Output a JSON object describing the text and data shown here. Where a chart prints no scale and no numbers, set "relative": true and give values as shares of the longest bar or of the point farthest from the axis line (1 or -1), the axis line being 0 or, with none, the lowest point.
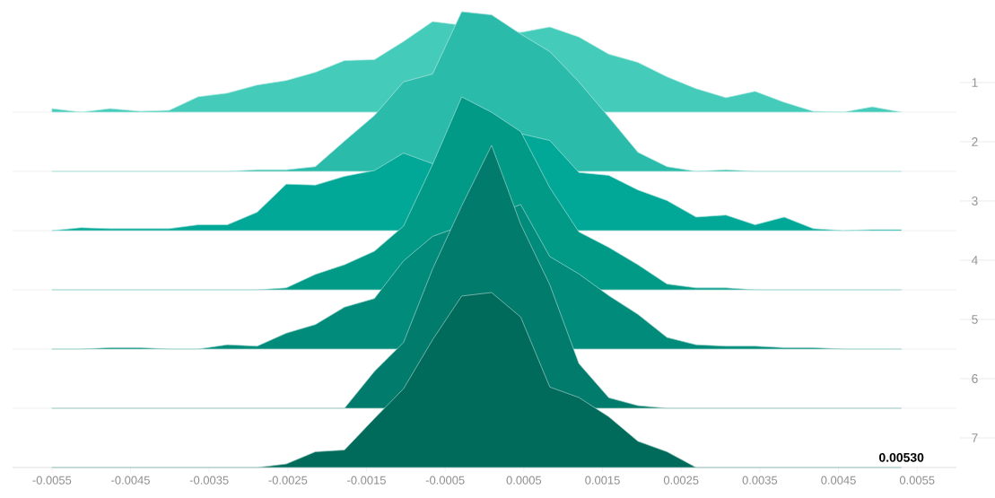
{
  "chart_data": [
    {
      "type": "area",
      "relative": true,
      "xlim": [
        -0.006,
        0.006
      ],
      "x": [
        -0.0055,
        -0.00513,
        -0.00476,
        -0.00438,
        -0.00401,
        -0.00364,
        -0.00327,
        -0.00289,
        -0.00252,
        -0.00215,
        -0.00178,
        -0.0014,
        -0.00103,
        -0.00066,
        -0.00029,
        9e-05,
        0.00046,
        0.00083,
        0.0012,
        0.00158,
        0.00195,
        0.00232,
        0.00269,
        0.00307,
        0.00344,
        0.00381,
        0.00418,
        0.00456,
        0.00493,
        0.0053
      ],
      "series": [
        {
          "name": "1",
          "color": "#45cbb9",
          "values": [
            0.04,
            0,
            0.04,
            0.01,
            0.02,
            0.17,
            0.21,
            0.3,
            0.35,
            0.44,
            0.57,
            0.58,
            0.78,
            1,
            null,
            null,
            0.88,
            0.94,
            0.83,
            0.64,
            0.55,
            0.39,
            0.26,
            0.16,
            0.23,
            0.11,
            0.01,
            0,
            0.06,
            0
          ]
        }
      ]
    },
    {
      "type": "area",
      "relative": true,
      "xlim": [
        -0.006,
        0.006
      ],
      "x": [
        -0.0055,
        -0.00513,
        -0.00476,
        -0.00438,
        -0.00401,
        -0.00364,
        -0.00327,
        -0.00289,
        -0.00252,
        -0.00215,
        -0.00178,
        -0.0014,
        -0.00103,
        -0.00066,
        -0.00029,
        9e-05,
        0.00046,
        0.00083,
        0.0012,
        0.00158,
        0.00195,
        0.00232,
        0.00269,
        0.00307,
        0.00344,
        0.00381,
        0.00418,
        0.00456,
        0.00493,
        0.0053
      ],
      "series": [
        {
          "name": "2",
          "color": "#2bbbaa",
          "values": [
            0,
            0,
            0,
            0,
            0,
            0,
            0,
            0.01,
            0.01,
            0.03,
            0.19,
            0.35,
            0.56,
            0.61,
            1,
            0.98,
            0.86,
            0.75,
            0.56,
            0.34,
            0.12,
            0.03,
            0,
            0.01,
            0,
            0,
            0,
            0,
            0,
            0
          ]
        }
      ]
    },
    {
      "type": "area",
      "relative": true,
      "xlim": [
        -0.006,
        0.006
      ],
      "x": [
        -0.0055,
        -0.00513,
        -0.00476,
        -0.00438,
        -0.00401,
        -0.00364,
        -0.00327,
        -0.00289,
        -0.00252,
        -0.00215,
        -0.00178,
        -0.0014,
        -0.00103,
        -0.00066,
        -0.00029,
        9e-05,
        0.00046,
        0.00083,
        0.0012,
        0.00158,
        0.00195,
        0.00232,
        0.00269,
        0.00307,
        0.00344,
        0.00381,
        0.00418,
        0.00456,
        0.00493,
        0.0053
      ],
      "series": [
        {
          "name": "3",
          "color": "#02a897",
          "values": [
            0,
            0.03,
            0.02,
            0.02,
            0.02,
            0.06,
            0.06,
            0.19,
            0.48,
            0.47,
            0.56,
            0.62,
            0.8,
            0.69,
            null,
            null,
            1,
            0.93,
            0.6,
            0.57,
            0.42,
            0.31,
            0.14,
            0.16,
            0.06,
            0.14,
            0.02,
            0,
            0.01,
            0.01
          ]
        }
      ]
    },
    {
      "type": "area",
      "relative": true,
      "xlim": [
        -0.006,
        0.006
      ],
      "x": [
        -0.0055,
        -0.00513,
        -0.00476,
        -0.00438,
        -0.00401,
        -0.00364,
        -0.00327,
        -0.00289,
        -0.00252,
        -0.00215,
        -0.00178,
        -0.0014,
        -0.00103,
        -0.00066,
        -0.00029,
        9e-05,
        0.00046,
        0.00083,
        0.0012,
        0.00158,
        0.00195,
        0.00232,
        0.00269,
        0.00307,
        0.00344,
        0.00381,
        0.00418,
        0.00456,
        0.00493,
        0.0053
      ],
      "series": [
        {
          "name": "4",
          "color": "#009a86",
          "values": [
            0,
            0,
            0,
            0,
            0,
            0,
            0,
            0,
            0.01,
            0.08,
            0.13,
            0.2,
            0.33,
            0.65,
            1,
            0.92,
            0.82,
            0.53,
            0.3,
            0.22,
            0.13,
            0.03,
            0.01,
            0.01,
            0,
            0,
            0,
            0,
            0,
            0
          ]
        }
      ]
    },
    {
      "type": "area",
      "relative": true,
      "xlim": [
        -0.006,
        0.006
      ],
      "x": [
        -0.0055,
        -0.00513,
        -0.00476,
        -0.00438,
        -0.00401,
        -0.00364,
        -0.00327,
        -0.00289,
        -0.00252,
        -0.00215,
        -0.00178,
        -0.0014,
        -0.00103,
        -0.00066,
        -0.00029,
        9e-05,
        0.00046,
        0.00083,
        0.0012,
        0.00158,
        0.00195,
        0.00232,
        0.00269,
        0.00307,
        0.00344,
        0.00381,
        0.00418,
        0.00456,
        0.00493,
        0.0053
      ],
      "series": [
        {
          "name": "5",
          "color": "#008b7a",
          "values": [
            0,
            0,
            0.01,
            0.01,
            0,
            0,
            0.03,
            0.02,
            0.11,
            0.17,
            0.29,
            0.35,
            0.61,
            0.78,
            null,
            null,
            1,
            0.64,
            0.52,
            0.37,
            0.24,
            0.08,
            0.03,
            0.02,
            0.02,
            0.01,
            0.01,
            0,
            0,
            0
          ]
        }
      ]
    },
    {
      "type": "area",
      "relative": true,
      "xlim": [
        -0.006,
        0.006
      ],
      "x": [
        -0.0055,
        -0.00513,
        -0.00476,
        -0.00438,
        -0.00401,
        -0.00364,
        -0.00327,
        -0.00289,
        -0.00252,
        -0.00215,
        -0.00178,
        -0.0014,
        -0.00103,
        -0.00066,
        -0.00029,
        9e-05,
        0.00046,
        0.00083,
        0.0012,
        0.00158,
        0.00195,
        0.00232,
        0.00269,
        0.00307,
        0.00344,
        0.00381,
        0.00418,
        0.00456,
        0.00493,
        0.0053
      ],
      "series": [
        {
          "name": "6",
          "color": "#017b6b",
          "values": [
            0,
            0,
            0,
            0,
            0,
            0,
            0,
            0,
            0,
            0,
            0,
            0.14,
            0.25,
            0.53,
            0.77,
            1,
            0.7,
            0.47,
            0.17,
            0.04,
            0.01,
            0,
            0,
            0,
            0,
            0,
            0,
            0,
            0,
            0
          ]
        }
      ]
    },
    {
      "type": "area",
      "relative": true,
      "xlim": [
        -0.006,
        0.006
      ],
      "x": [
        -0.0055,
        -0.00513,
        -0.00476,
        -0.00438,
        -0.00401,
        -0.00364,
        -0.00327,
        -0.00289,
        -0.00252,
        -0.00215,
        -0.00178,
        -0.0014,
        -0.00103,
        -0.00066,
        -0.00029,
        9e-05,
        0.00046,
        0.00083,
        0.0012,
        0.00158,
        0.00195,
        0.00232,
        0.00269,
        0.00307,
        0.00344,
        0.00381,
        0.00418,
        0.00456,
        0.00493,
        0.0053
      ],
      "xticks": [
        -0.0055,
        -0.0045,
        -0.0035,
        -0.0025,
        -0.0015,
        -0.0005,
        0.0005,
        0.0015,
        0.0025,
        0.0035,
        0.0045,
        0.0055
      ],
      "annotations": [
        "0.00530"
      ],
      "series": [
        {
          "name": "7",
          "color": "#006b5a",
          "values": [
            0,
            0,
            0,
            0,
            0,
            0,
            0,
            0,
            0.02,
            0.09,
            0.1,
            0.28,
            0.45,
            0.73,
            0.98,
            1,
            0.86,
            0.46,
            0.4,
            0.29,
            0.15,
            0.09,
            0,
            0,
            0,
            0,
            0,
            0,
            0,
            0
          ]
        }
      ]
    }
  ]
}
